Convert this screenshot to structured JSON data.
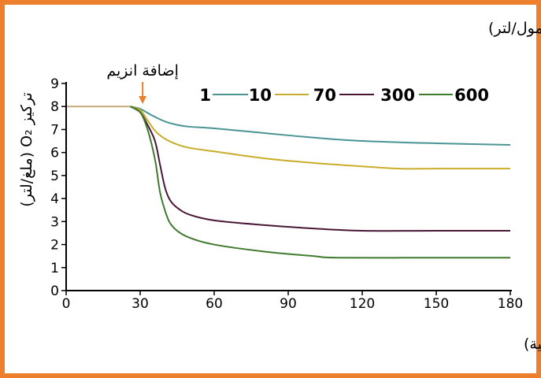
{
  "frame_color": "#ee7f2d",
  "chart_data": {
    "type": "line",
    "title": "تراكيز مادة التفاعل(ميلي مول/لتر)",
    "xlabel": "الزمن (الثانية)",
    "ylabel": "تركيز O₂ (ملغ/لتر)",
    "xlim": [
      0,
      180
    ],
    "ylim": [
      0,
      9
    ],
    "x_ticks": [
      0,
      30,
      60,
      90,
      120,
      150,
      180
    ],
    "y_ticks": [
      0,
      1,
      2,
      3,
      4,
      5,
      6,
      7,
      8,
      9
    ],
    "grid": false,
    "legend_position": "top-right",
    "annotation": {
      "text": "إضافة انزيم",
      "x": 31,
      "color": "#ee7f2d"
    },
    "baseline": {
      "x": [
        0,
        26
      ],
      "y": [
        8,
        8
      ],
      "color": "#c8a878"
    },
    "series": [
      {
        "name": "1",
        "color": "#ffffff",
        "x": [
          26,
          180
        ],
        "y": [
          8,
          8
        ]
      },
      {
        "name": "10",
        "color": "#4a9496",
        "x": [
          26,
          30,
          35,
          40,
          45,
          50,
          60,
          80,
          100,
          120,
          150,
          180
        ],
        "y": [
          8,
          7.9,
          7.6,
          7.35,
          7.2,
          7.12,
          7.05,
          6.85,
          6.65,
          6.5,
          6.4,
          6.33
        ]
      },
      {
        "name": "70",
        "color": "#c9ad2b",
        "x": [
          26,
          30,
          33,
          36,
          40,
          45,
          50,
          60,
          80,
          100,
          120,
          135,
          150,
          180
        ],
        "y": [
          8,
          7.85,
          7.4,
          6.95,
          6.6,
          6.35,
          6.2,
          6.05,
          5.75,
          5.55,
          5.4,
          5.3,
          5.3,
          5.3
        ]
      },
      {
        "name": "300",
        "color": "#4a1636",
        "x": [
          26,
          30,
          33,
          36,
          38,
          40,
          42,
          45,
          50,
          60,
          80,
          100,
          120,
          150,
          180
        ],
        "y": [
          8,
          7.75,
          7.2,
          6.5,
          5.5,
          4.5,
          3.95,
          3.6,
          3.3,
          3.05,
          2.85,
          2.7,
          2.6,
          2.6,
          2.6
        ]
      },
      {
        "name": "600",
        "color": "#3f7a2e",
        "x": [
          26,
          30,
          33,
          36,
          38,
          40,
          42,
          45,
          50,
          60,
          80,
          100,
          110,
          150,
          180
        ],
        "y": [
          8,
          7.75,
          7.0,
          5.7,
          4.3,
          3.5,
          2.95,
          2.6,
          2.3,
          2.0,
          1.7,
          1.5,
          1.43,
          1.43,
          1.43
        ]
      }
    ]
  }
}
